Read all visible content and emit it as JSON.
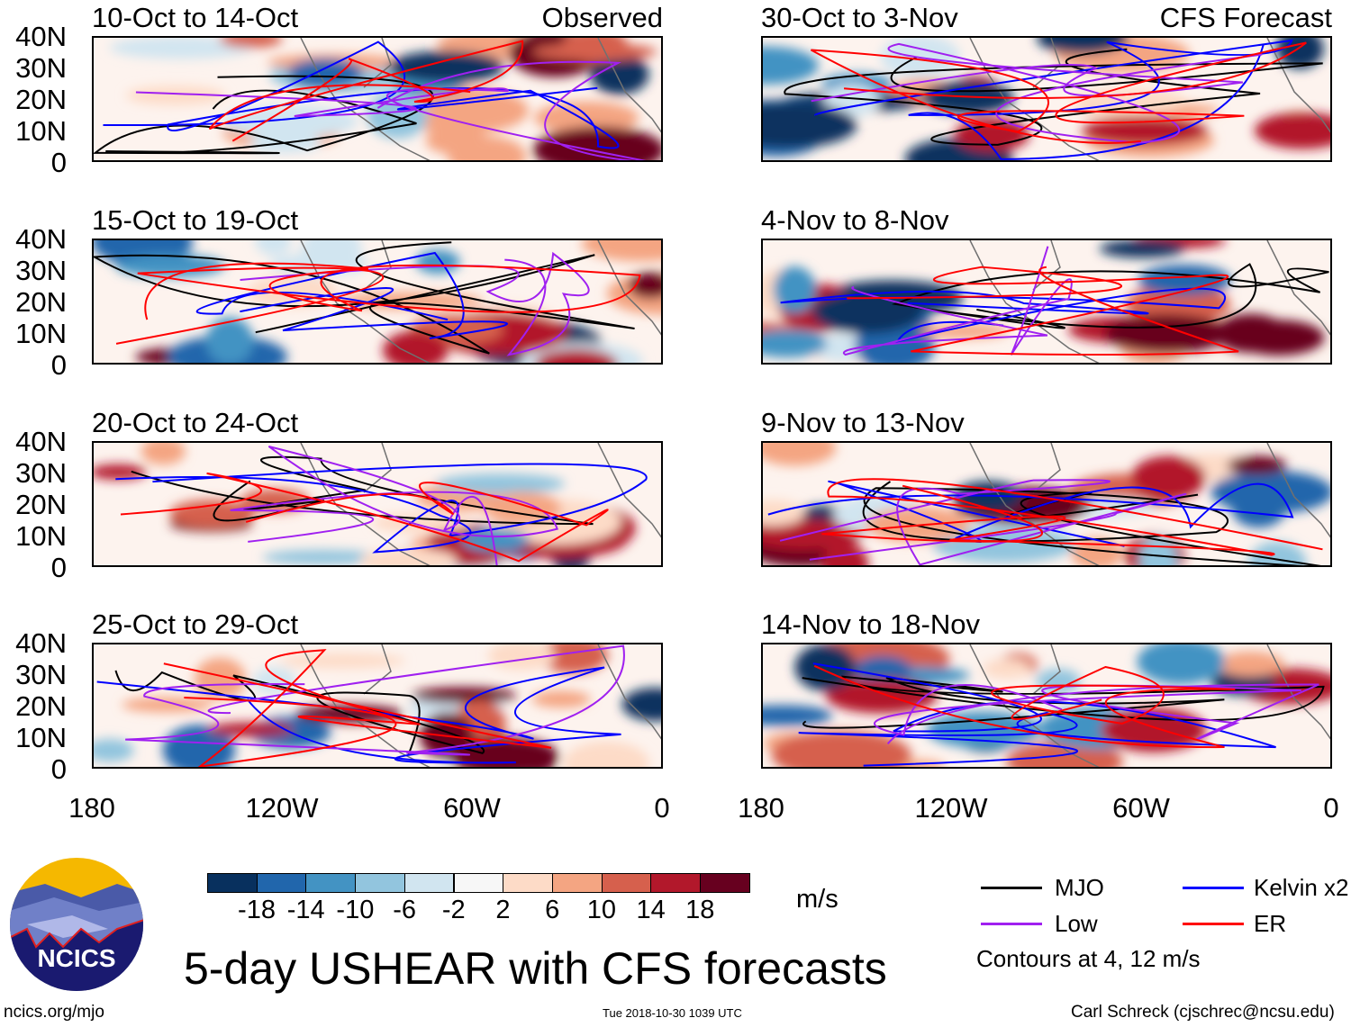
{
  "chart_data": {
    "type": "heatmap",
    "title": "5-day USHEAR with CFS forecasts",
    "units": "m/s",
    "colorbar": {
      "ticks": [
        "-18",
        "-14",
        "-10",
        "-6",
        "-2",
        "2",
        "6",
        "10",
        "14",
        "18"
      ],
      "colors": [
        "#08305e",
        "#2166ac",
        "#4393c3",
        "#92c5de",
        "#d1e5f0",
        "#f7f7f7",
        "#fddbc7",
        "#f4a582",
        "#d6604d",
        "#b2182b",
        "#67001f"
      ]
    },
    "y_ticks": [
      "40N",
      "30N",
      "20N",
      "10N",
      "0"
    ],
    "x_ticks": [
      "180",
      "120W",
      "60W",
      "0"
    ],
    "observed_label": "Observed",
    "forecast_label": "CFS Forecast",
    "observed_panels": [
      "10-Oct to 14-Oct",
      "15-Oct to 19-Oct",
      "20-Oct to 24-Oct",
      "25-Oct to 29-Oct"
    ],
    "forecast_panels": [
      "30-Oct to 3-Nov",
      "4-Nov to 8-Nov",
      "9-Nov to 13-Nov",
      "14-Nov to 18-Nov"
    ],
    "legend": [
      {
        "label": "MJO",
        "color": "#000000"
      },
      {
        "label": "Kelvin x2",
        "color": "#0000ff"
      },
      {
        "label": "Low",
        "color": "#a020f0"
      },
      {
        "label": "ER",
        "color": "#ff0000"
      }
    ],
    "contour_note": "Contours at 4, 12 m/s"
  },
  "footer": {
    "logo_text": "NCICS",
    "url": "ncics.org/mjo",
    "timestamp": "Tue 2018-10-30 1039 UTC",
    "credit": "Carl Schreck (cjschrec@ncsu.edu)"
  }
}
